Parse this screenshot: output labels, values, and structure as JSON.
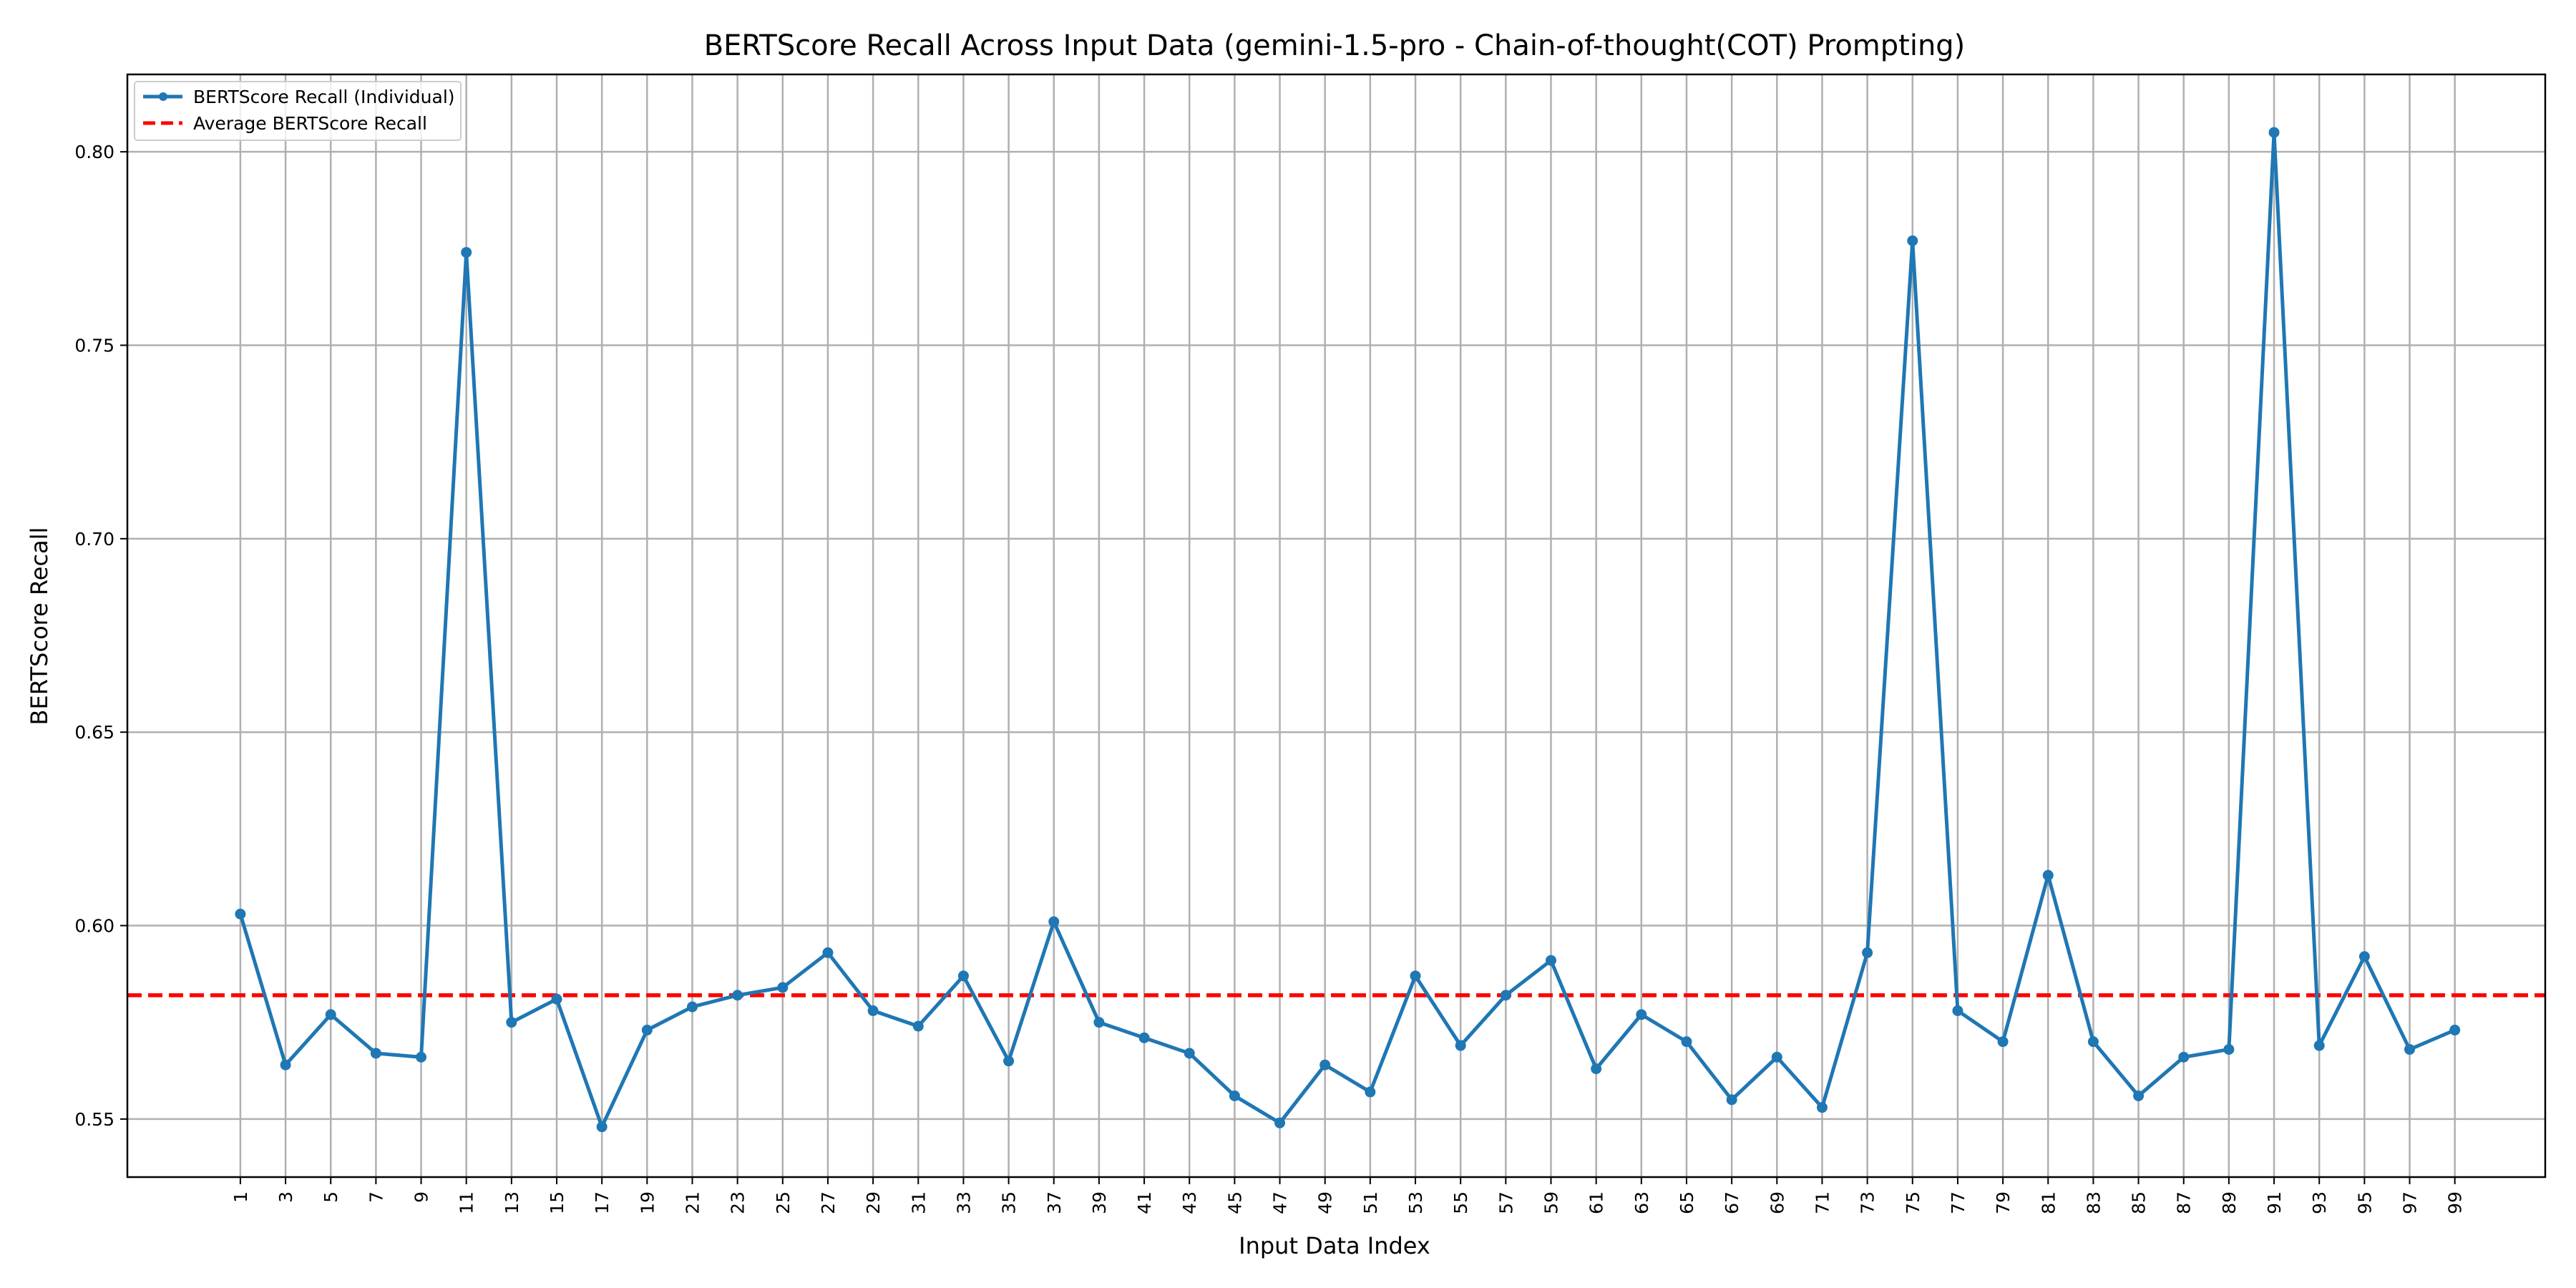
{
  "chart_data": {
    "type": "line",
    "title": "BERTScore Recall Across Input Data (gemini-1.5-pro - Chain-of-thought(COT) Prompting)",
    "xlabel": "Input Data Index",
    "ylabel": "BERTScore Recall",
    "grid": true,
    "legend_position": "top-left",
    "xlim": [
      -4,
      103
    ],
    "ylim": [
      0.535,
      0.82
    ],
    "x_ticks": [
      1,
      3,
      5,
      7,
      9,
      11,
      13,
      15,
      17,
      19,
      21,
      23,
      25,
      27,
      29,
      31,
      33,
      35,
      37,
      39,
      41,
      43,
      45,
      47,
      49,
      51,
      53,
      55,
      57,
      59,
      61,
      63,
      65,
      67,
      69,
      71,
      73,
      75,
      77,
      79,
      81,
      83,
      85,
      87,
      89,
      91,
      93,
      95,
      97,
      99
    ],
    "y_ticks": [
      0.55,
      0.6,
      0.65,
      0.7,
      0.75,
      0.8
    ],
    "y_tick_labels": [
      "0.55",
      "0.60",
      "0.65",
      "0.70",
      "0.75",
      "0.80"
    ],
    "series": [
      {
        "name": "BERTScore Recall (Individual)",
        "color": "#1f77b4",
        "style": "solid-with-markers",
        "x": [
          1,
          3,
          5,
          7,
          9,
          11,
          13,
          15,
          17,
          19,
          21,
          23,
          25,
          27,
          29,
          31,
          33,
          35,
          37,
          39,
          41,
          43,
          45,
          47,
          49,
          51,
          53,
          55,
          57,
          59,
          61,
          63,
          65,
          67,
          69,
          71,
          73,
          75,
          77,
          79,
          81,
          83,
          85,
          87,
          89,
          91,
          93,
          95,
          97,
          99
        ],
        "values": [
          0.603,
          0.564,
          0.577,
          0.567,
          0.566,
          0.774,
          0.575,
          0.581,
          0.548,
          0.573,
          0.579,
          0.582,
          0.584,
          0.593,
          0.578,
          0.574,
          0.587,
          0.565,
          0.601,
          0.575,
          0.571,
          0.567,
          0.556,
          0.549,
          0.564,
          0.557,
          0.587,
          0.569,
          0.582,
          0.591,
          0.563,
          0.577,
          0.57,
          0.555,
          0.566,
          0.553,
          0.593,
          0.777,
          0.578,
          0.57,
          0.613,
          0.57,
          0.556,
          0.566,
          0.568,
          0.805,
          0.569,
          0.592,
          0.568,
          0.573
        ]
      },
      {
        "name": "Average BERTScore Recall",
        "color": "#ff0000",
        "style": "dashed",
        "value": 0.582
      }
    ]
  }
}
